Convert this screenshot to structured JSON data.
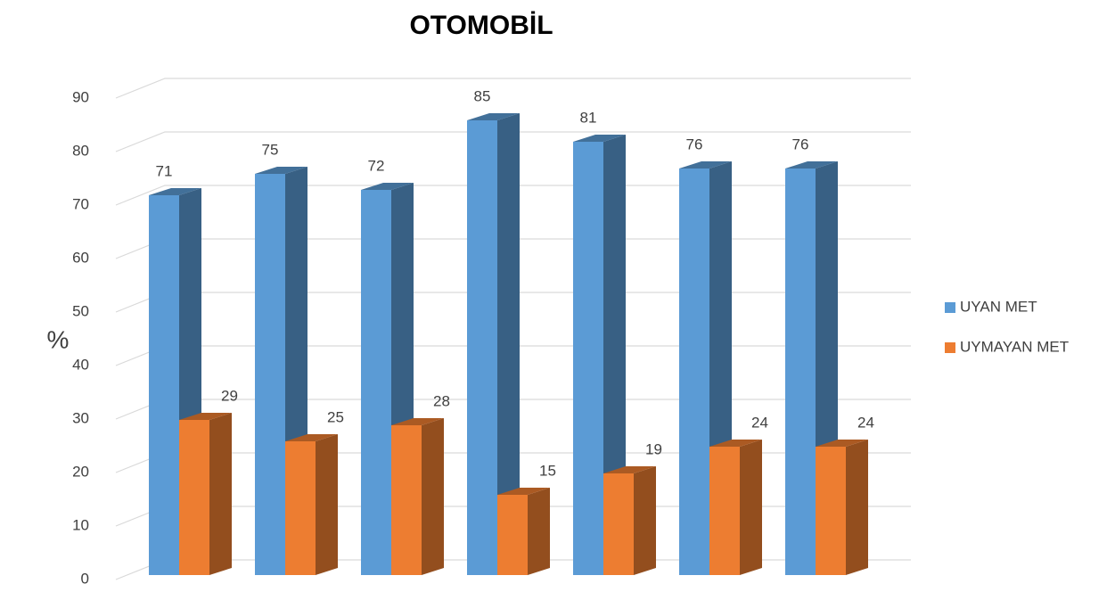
{
  "chart_data": {
    "type": "bar3d",
    "title": "OTOMOBİL",
    "y_label": "%",
    "categories": [
      null,
      null,
      null,
      null,
      null,
      null,
      null
    ],
    "series": [
      {
        "name": "UYAN MET",
        "color": "#5b9bd5",
        "values": [
          71,
          75,
          72,
          85,
          81,
          76,
          76
        ]
      },
      {
        "name": "UYMAYAN MET",
        "color": "#ed7d31",
        "values": [
          29,
          25,
          28,
          15,
          19,
          24,
          24
        ]
      }
    ],
    "ylim": [
      0,
      90
    ],
    "yticks": [
      0,
      10,
      20,
      30,
      40,
      50,
      60,
      70,
      80,
      90
    ],
    "grid": true,
    "legend": "right"
  }
}
